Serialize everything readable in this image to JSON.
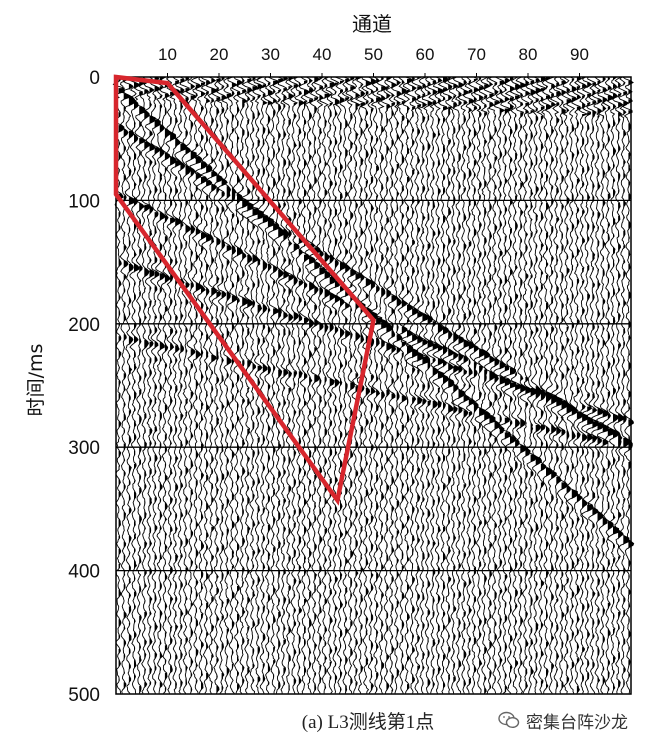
{
  "chart_data": {
    "type": "seismic_wiggle",
    "caption": "(a) L3测线第1点",
    "xlabel": "通道",
    "ylabel": "时间/ms",
    "x_range": [
      0,
      100
    ],
    "y_range": [
      0,
      500
    ],
    "x_ticks": [
      10,
      20,
      30,
      40,
      50,
      60,
      70,
      80,
      90
    ],
    "y_ticks": [
      0,
      100,
      200,
      300,
      400,
      500
    ],
    "y_gridlines": [
      100,
      200,
      300,
      400
    ],
    "y_inverted": true,
    "x_axis_position": "top",
    "trace_count": 100,
    "trace_color": "#000000",
    "highlight_polygon": {
      "color": "#d7262d",
      "points": [
        [
          0,
          0
        ],
        [
          10,
          5
        ],
        [
          50,
          197
        ],
        [
          43,
          343
        ],
        [
          0,
          95
        ]
      ]
    }
  },
  "watermark": {
    "text": "密集台阵沙龙",
    "icon": "wechat-icon"
  }
}
